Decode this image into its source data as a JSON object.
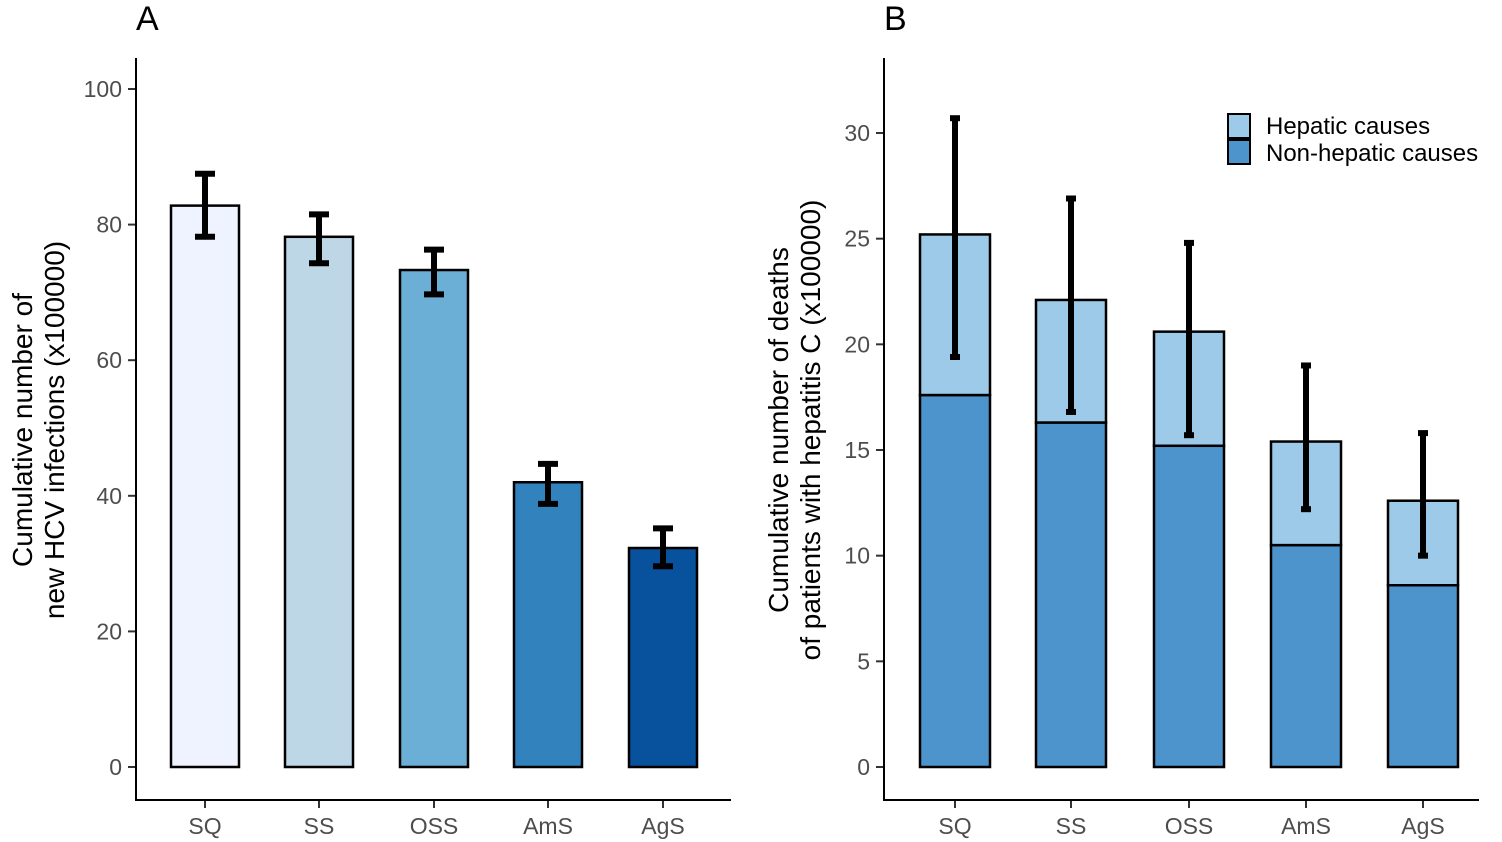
{
  "chart_data": [
    {
      "panel": "A",
      "type": "bar",
      "ylabel_line1": "Cumulative number of",
      "ylabel_line2": "new HCV infections (x100000)",
      "xlabel": "",
      "categories": [
        "SQ",
        "SS",
        "OSS",
        "AmS",
        "AgS"
      ],
      "values": [
        82.8,
        78.2,
        73.3,
        42.0,
        32.3
      ],
      "error_low": [
        78.2,
        74.3,
        69.7,
        38.8,
        29.6
      ],
      "error_high": [
        87.5,
        81.5,
        76.3,
        44.7,
        35.2
      ],
      "colors": [
        "#eff3ff",
        "#bdd7e7",
        "#6baed6",
        "#3182bd",
        "#08519c"
      ],
      "ylim": [
        0,
        100
      ],
      "yticks": [
        "0",
        "20",
        "40",
        "60",
        "80",
        "100"
      ]
    },
    {
      "panel": "B",
      "type": "bar",
      "stacked": true,
      "ylabel_line1": "Cumulative number of deaths",
      "ylabel_line2": "of patients with hepatitis C (x100000)",
      "xlabel": "",
      "categories": [
        "SQ",
        "SS",
        "OSS",
        "AmS",
        "AgS"
      ],
      "series": [
        {
          "name": "Non-hepatic causes",
          "color": "#4d94cc",
          "values": [
            17.6,
            16.3,
            15.2,
            10.5,
            8.6
          ]
        },
        {
          "name": "Hepatic causes",
          "color": "#9ecae9",
          "values": [
            7.6,
            5.8,
            5.4,
            4.9,
            4.0
          ]
        }
      ],
      "totals": [
        25.2,
        22.1,
        20.6,
        15.4,
        12.6
      ],
      "error_low": [
        19.4,
        16.8,
        15.7,
        12.2,
        10.0
      ],
      "error_high": [
        30.7,
        26.9,
        24.8,
        19.0,
        15.8
      ],
      "ylim": [
        0,
        33
      ],
      "yticks": [
        "0",
        "5",
        "10",
        "15",
        "20",
        "25",
        "30"
      ],
      "legend": [
        "Hepatic causes",
        "Non-hepatic causes"
      ],
      "legend_position": "top-right"
    }
  ]
}
